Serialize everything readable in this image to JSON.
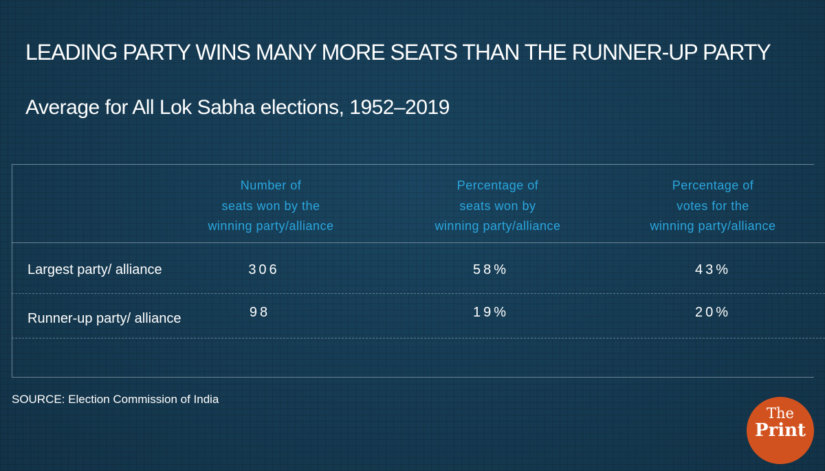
{
  "title": "LEADING PARTY WINS MANY MORE SEATS THAN THE RUNNER-UP PARTY",
  "subtitle": "Average  for All Lok Sabha elections, 1952–2019",
  "chart_data": {
    "type": "table",
    "columns": [
      [
        "Number of",
        "seats won by the",
        "winning party/alliance"
      ],
      [
        "Percentage of",
        "seats won by",
        "winning party/alliance"
      ],
      [
        "Percentage of",
        "votes for the",
        "winning party/alliance"
      ]
    ],
    "rows": [
      {
        "label": "Largest party/ alliance",
        "values": [
          "306",
          "58%",
          "43%"
        ]
      },
      {
        "label": "Runner-up party/ alliance",
        "values": [
          "98",
          "19%",
          "20%"
        ]
      }
    ]
  },
  "source": "SOURCE: Election Commission of India",
  "logo": {
    "line1": "The",
    "line2": "Print",
    "color": "#d2521f"
  },
  "colors": {
    "background": "#163a52",
    "header_text": "#2ba6de"
  }
}
